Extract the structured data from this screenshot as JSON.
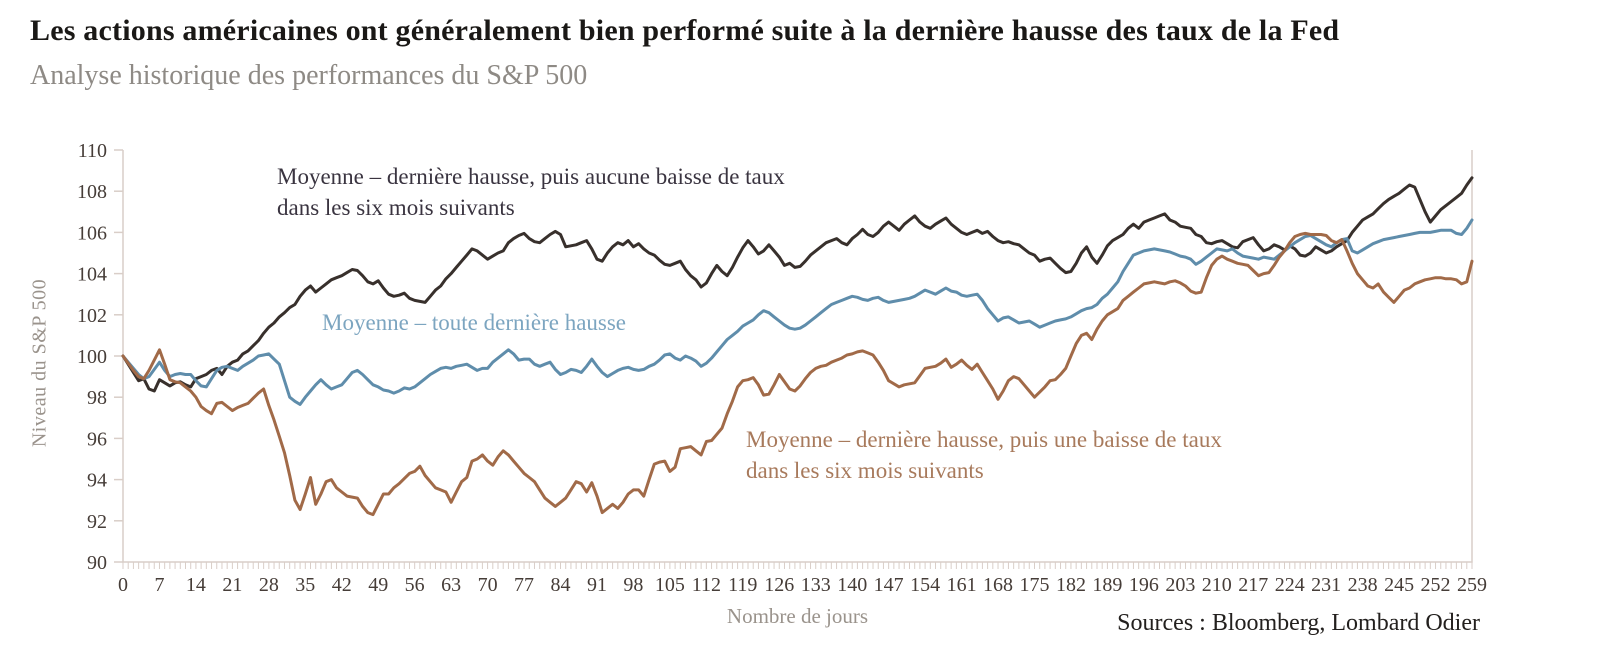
{
  "header": {
    "title": "Les actions américaines ont généralement bien performé suite à la dernière hausse des taux de la Fed",
    "subtitle": "Analyse historique des performances du S&P 500"
  },
  "footer": {
    "source": "Sources : Bloomberg, Lombard Odier"
  },
  "chart_data": {
    "type": "line",
    "title": "Les actions américaines ont généralement bien performé suite à la dernière hausse des taux de la Fed",
    "subtitle": "Analyse historique des performances du S&P 500",
    "xlabel": "Nombre de jours",
    "ylabel": "Niveau du S&P 500",
    "x_start": 0,
    "x_step": 1,
    "x_max": 259,
    "ylim": [
      90,
      110
    ],
    "grid": false,
    "legend_position": "inline-annotations",
    "x_tick_labels": [
      0,
      7,
      14,
      21,
      28,
      35,
      42,
      49,
      56,
      63,
      70,
      77,
      84,
      91,
      98,
      105,
      112,
      119,
      126,
      133,
      140,
      147,
      154,
      161,
      168,
      175,
      182,
      189,
      196,
      203,
      210,
      217,
      224,
      231,
      238,
      245,
      252,
      259
    ],
    "y_tick_labels": [
      90,
      92,
      94,
      96,
      98,
      100,
      102,
      104,
      106,
      108,
      110
    ],
    "colors": {
      "axis": "#d9cec8",
      "tick_text": "#463d38",
      "axis_title_text": "#9a938c",
      "dark_line": "#38302c",
      "blue_line": "#5f8dab",
      "brown_line": "#a16a48"
    },
    "annotations": [
      {
        "id": "no-rate-cut",
        "line1": "Moyenne – dernière hausse, puis aucune baisse de taux",
        "line2": "dans les six mois suivants",
        "color": "#3a3440"
      },
      {
        "id": "all-last-hikes",
        "line1": "Moyenne – toute dernière hausse",
        "line2": "",
        "color": "#7ca5c0"
      },
      {
        "id": "rate-cut",
        "line1": "Moyenne – dernière hausse, puis une baisse de taux",
        "line2": "dans les six mois suivants",
        "color": "#a87a5c"
      }
    ],
    "series": [
      {
        "id": "no-rate-cut",
        "name": "Moyenne – dernière hausse, puis aucune baisse de taux dans les six mois suivants",
        "color": "#38302c",
        "values": [
          100.0,
          99.6,
          99.2,
          98.8,
          98.9,
          98.4,
          98.3,
          98.85,
          98.7,
          98.55,
          98.7,
          98.75,
          98.6,
          98.5,
          98.9,
          99.0,
          99.1,
          99.3,
          99.4,
          99.1,
          99.5,
          99.7,
          99.8,
          100.1,
          100.25,
          100.5,
          100.75,
          101.1,
          101.4,
          101.6,
          101.9,
          102.1,
          102.35,
          102.5,
          102.9,
          103.2,
          103.4,
          103.1,
          103.3,
          103.5,
          103.7,
          103.8,
          103.9,
          104.05,
          104.2,
          104.15,
          103.9,
          103.6,
          103.5,
          103.65,
          103.3,
          103.0,
          102.9,
          102.95,
          103.05,
          102.8,
          102.7,
          102.65,
          102.6,
          102.9,
          103.2,
          103.4,
          103.75,
          104.0,
          104.3,
          104.6,
          104.9,
          105.2,
          105.1,
          104.9,
          104.7,
          104.85,
          105.0,
          105.1,
          105.5,
          105.7,
          105.85,
          105.95,
          105.7,
          105.55,
          105.5,
          105.7,
          105.9,
          106.05,
          105.9,
          105.3,
          105.35,
          105.4,
          105.5,
          105.6,
          105.2,
          104.7,
          104.6,
          105.0,
          105.3,
          105.5,
          105.4,
          105.6,
          105.3,
          105.45,
          105.2,
          105.0,
          104.9,
          104.65,
          104.45,
          104.4,
          104.5,
          104.6,
          104.2,
          103.9,
          103.7,
          103.35,
          103.55,
          104.0,
          104.4,
          104.1,
          103.9,
          104.3,
          104.8,
          105.25,
          105.6,
          105.3,
          104.95,
          105.1,
          105.4,
          105.1,
          104.8,
          104.4,
          104.5,
          104.3,
          104.35,
          104.6,
          104.9,
          105.1,
          105.3,
          105.5,
          105.6,
          105.7,
          105.5,
          105.4,
          105.7,
          105.9,
          106.15,
          105.9,
          105.8,
          106.0,
          106.3,
          106.5,
          106.3,
          106.1,
          106.4,
          106.6,
          106.8,
          106.5,
          106.3,
          106.2,
          106.4,
          106.55,
          106.7,
          106.4,
          106.2,
          106.0,
          105.9,
          106.0,
          106.1,
          105.95,
          106.05,
          105.8,
          105.6,
          105.5,
          105.55,
          105.45,
          105.4,
          105.2,
          105.0,
          104.9,
          104.6,
          104.7,
          104.75,
          104.5,
          104.25,
          104.05,
          104.1,
          104.5,
          105.0,
          105.3,
          104.8,
          104.5,
          104.9,
          105.35,
          105.6,
          105.75,
          105.9,
          106.2,
          106.4,
          106.2,
          106.5,
          106.6,
          106.7,
          106.8,
          106.9,
          106.6,
          106.5,
          106.3,
          106.25,
          106.2,
          105.9,
          105.8,
          105.5,
          105.45,
          105.55,
          105.6,
          105.45,
          105.3,
          105.25,
          105.55,
          105.65,
          105.75,
          105.4,
          105.1,
          105.2,
          105.4,
          105.3,
          105.15,
          105.35,
          105.2,
          104.9,
          104.85,
          105.0,
          105.3,
          105.15,
          105.0,
          105.1,
          105.3,
          105.45,
          105.6,
          106.0,
          106.3,
          106.6,
          106.75,
          106.9,
          107.15,
          107.4,
          107.6,
          107.75,
          107.9,
          108.1,
          108.3,
          108.2,
          107.6,
          107.0,
          106.5,
          106.8,
          107.1,
          107.3,
          107.5,
          107.7,
          107.9,
          108.3,
          108.65
        ]
      },
      {
        "id": "all-last-hikes",
        "name": "Moyenne – toute dernière hausse",
        "color": "#5f8dab",
        "values": [
          100.0,
          99.7,
          99.4,
          99.1,
          98.9,
          99.0,
          99.35,
          99.7,
          99.3,
          99.0,
          99.1,
          99.15,
          99.1,
          99.1,
          98.8,
          98.55,
          98.5,
          98.9,
          99.3,
          99.45,
          99.5,
          99.4,
          99.3,
          99.5,
          99.65,
          99.8,
          100.0,
          100.05,
          100.1,
          99.85,
          99.6,
          98.8,
          98.0,
          97.8,
          97.65,
          98.0,
          98.3,
          98.6,
          98.85,
          98.6,
          98.4,
          98.5,
          98.6,
          98.9,
          99.2,
          99.3,
          99.1,
          98.85,
          98.6,
          98.5,
          98.35,
          98.3,
          98.2,
          98.3,
          98.45,
          98.4,
          98.5,
          98.7,
          98.9,
          99.1,
          99.25,
          99.4,
          99.45,
          99.4,
          99.5,
          99.55,
          99.6,
          99.45,
          99.3,
          99.4,
          99.4,
          99.7,
          99.9,
          100.1,
          100.3,
          100.1,
          99.8,
          99.85,
          99.85,
          99.6,
          99.5,
          99.6,
          99.7,
          99.35,
          99.1,
          99.2,
          99.35,
          99.3,
          99.2,
          99.5,
          99.85,
          99.5,
          99.2,
          99.0,
          99.15,
          99.3,
          99.4,
          99.45,
          99.35,
          99.3,
          99.35,
          99.5,
          99.6,
          99.8,
          100.05,
          100.1,
          99.9,
          99.8,
          100.0,
          99.9,
          99.75,
          99.5,
          99.65,
          99.9,
          100.2,
          100.5,
          100.8,
          101.0,
          101.2,
          101.45,
          101.6,
          101.75,
          102.0,
          102.2,
          102.1,
          101.9,
          101.7,
          101.5,
          101.35,
          101.3,
          101.35,
          101.5,
          101.7,
          101.9,
          102.1,
          102.3,
          102.5,
          102.6,
          102.7,
          102.8,
          102.9,
          102.85,
          102.75,
          102.7,
          102.8,
          102.85,
          102.7,
          102.6,
          102.65,
          102.7,
          102.75,
          102.8,
          102.9,
          103.05,
          103.2,
          103.1,
          103.0,
          103.15,
          103.3,
          103.15,
          103.1,
          102.95,
          102.9,
          102.95,
          103.0,
          102.7,
          102.3,
          102.0,
          101.7,
          101.85,
          101.9,
          101.75,
          101.6,
          101.65,
          101.7,
          101.55,
          101.4,
          101.5,
          101.6,
          101.7,
          101.75,
          101.8,
          101.9,
          102.05,
          102.2,
          102.3,
          102.35,
          102.5,
          102.8,
          103.0,
          103.3,
          103.6,
          104.1,
          104.5,
          104.9,
          105.0,
          105.1,
          105.15,
          105.2,
          105.15,
          105.1,
          105.05,
          104.95,
          104.85,
          104.8,
          104.7,
          104.45,
          104.6,
          104.8,
          105.0,
          105.2,
          105.15,
          105.1,
          105.2,
          105.0,
          104.85,
          104.8,
          104.75,
          104.7,
          104.8,
          104.75,
          104.7,
          104.9,
          105.1,
          105.3,
          105.5,
          105.65,
          105.8,
          105.85,
          105.7,
          105.55,
          105.4,
          105.3,
          105.5,
          105.65,
          105.7,
          105.1,
          105.0,
          105.15,
          105.3,
          105.45,
          105.55,
          105.65,
          105.7,
          105.75,
          105.8,
          105.85,
          105.9,
          105.95,
          106.0,
          106.0,
          106.0,
          106.05,
          106.1,
          106.1,
          106.1,
          105.95,
          105.9,
          106.2,
          106.6
        ]
      },
      {
        "id": "rate-cut",
        "name": "Moyenne – dernière hausse, puis une baisse de taux dans les six mois suivants",
        "color": "#a16a48",
        "values": [
          100.0,
          99.65,
          99.3,
          99.0,
          98.9,
          99.3,
          99.8,
          100.3,
          99.6,
          98.85,
          98.75,
          98.7,
          98.5,
          98.3,
          98.0,
          97.55,
          97.35,
          97.2,
          97.7,
          97.75,
          97.55,
          97.35,
          97.5,
          97.6,
          97.7,
          97.95,
          98.2,
          98.4,
          97.6,
          96.9,
          96.1,
          95.3,
          94.2,
          93.0,
          92.55,
          93.3,
          94.1,
          92.8,
          93.3,
          93.9,
          94.0,
          93.6,
          93.4,
          93.2,
          93.15,
          93.1,
          92.7,
          92.4,
          92.3,
          92.8,
          93.3,
          93.3,
          93.6,
          93.8,
          94.05,
          94.3,
          94.4,
          94.65,
          94.2,
          93.9,
          93.6,
          93.5,
          93.4,
          92.9,
          93.4,
          93.9,
          94.1,
          94.9,
          95.0,
          95.2,
          94.9,
          94.7,
          95.1,
          95.4,
          95.2,
          94.9,
          94.6,
          94.3,
          94.1,
          93.9,
          93.5,
          93.1,
          92.9,
          92.7,
          92.9,
          93.1,
          93.5,
          93.9,
          93.8,
          93.4,
          93.85,
          93.2,
          92.4,
          92.6,
          92.8,
          92.6,
          92.9,
          93.3,
          93.5,
          93.5,
          93.2,
          94.0,
          94.75,
          94.85,
          94.9,
          94.4,
          94.6,
          95.5,
          95.55,
          95.6,
          95.4,
          95.2,
          95.85,
          95.9,
          96.2,
          96.5,
          97.2,
          97.8,
          98.5,
          98.8,
          98.85,
          98.95,
          98.6,
          98.1,
          98.15,
          98.6,
          99.1,
          98.75,
          98.4,
          98.3,
          98.55,
          98.9,
          99.2,
          99.4,
          99.5,
          99.55,
          99.7,
          99.8,
          99.9,
          100.05,
          100.1,
          100.2,
          100.25,
          100.15,
          100.05,
          99.7,
          99.3,
          98.8,
          98.65,
          98.5,
          98.6,
          98.65,
          98.7,
          99.05,
          99.4,
          99.45,
          99.5,
          99.65,
          99.85,
          99.45,
          99.6,
          99.8,
          99.55,
          99.35,
          99.6,
          99.2,
          98.8,
          98.4,
          97.9,
          98.3,
          98.8,
          99.0,
          98.9,
          98.6,
          98.3,
          98.0,
          98.25,
          98.5,
          98.8,
          98.85,
          99.1,
          99.4,
          100.0,
          100.6,
          101.0,
          101.1,
          100.8,
          101.3,
          101.7,
          102.0,
          102.15,
          102.3,
          102.7,
          102.9,
          103.1,
          103.3,
          103.5,
          103.55,
          103.6,
          103.55,
          103.5,
          103.6,
          103.65,
          103.55,
          103.4,
          103.15,
          103.05,
          103.1,
          103.8,
          104.4,
          104.7,
          104.85,
          104.7,
          104.6,
          104.5,
          104.45,
          104.4,
          104.15,
          103.9,
          104.0,
          104.05,
          104.4,
          104.8,
          105.1,
          105.5,
          105.8,
          105.9,
          105.95,
          105.9,
          105.9,
          105.9,
          105.85,
          105.6,
          105.5,
          105.65,
          105.1,
          104.5,
          104.0,
          103.7,
          103.4,
          103.3,
          103.5,
          103.1,
          102.85,
          102.6,
          102.9,
          103.2,
          103.3,
          103.5,
          103.6,
          103.7,
          103.75,
          103.8,
          103.8,
          103.75,
          103.75,
          103.7,
          103.5,
          103.6,
          104.6
        ]
      }
    ]
  }
}
